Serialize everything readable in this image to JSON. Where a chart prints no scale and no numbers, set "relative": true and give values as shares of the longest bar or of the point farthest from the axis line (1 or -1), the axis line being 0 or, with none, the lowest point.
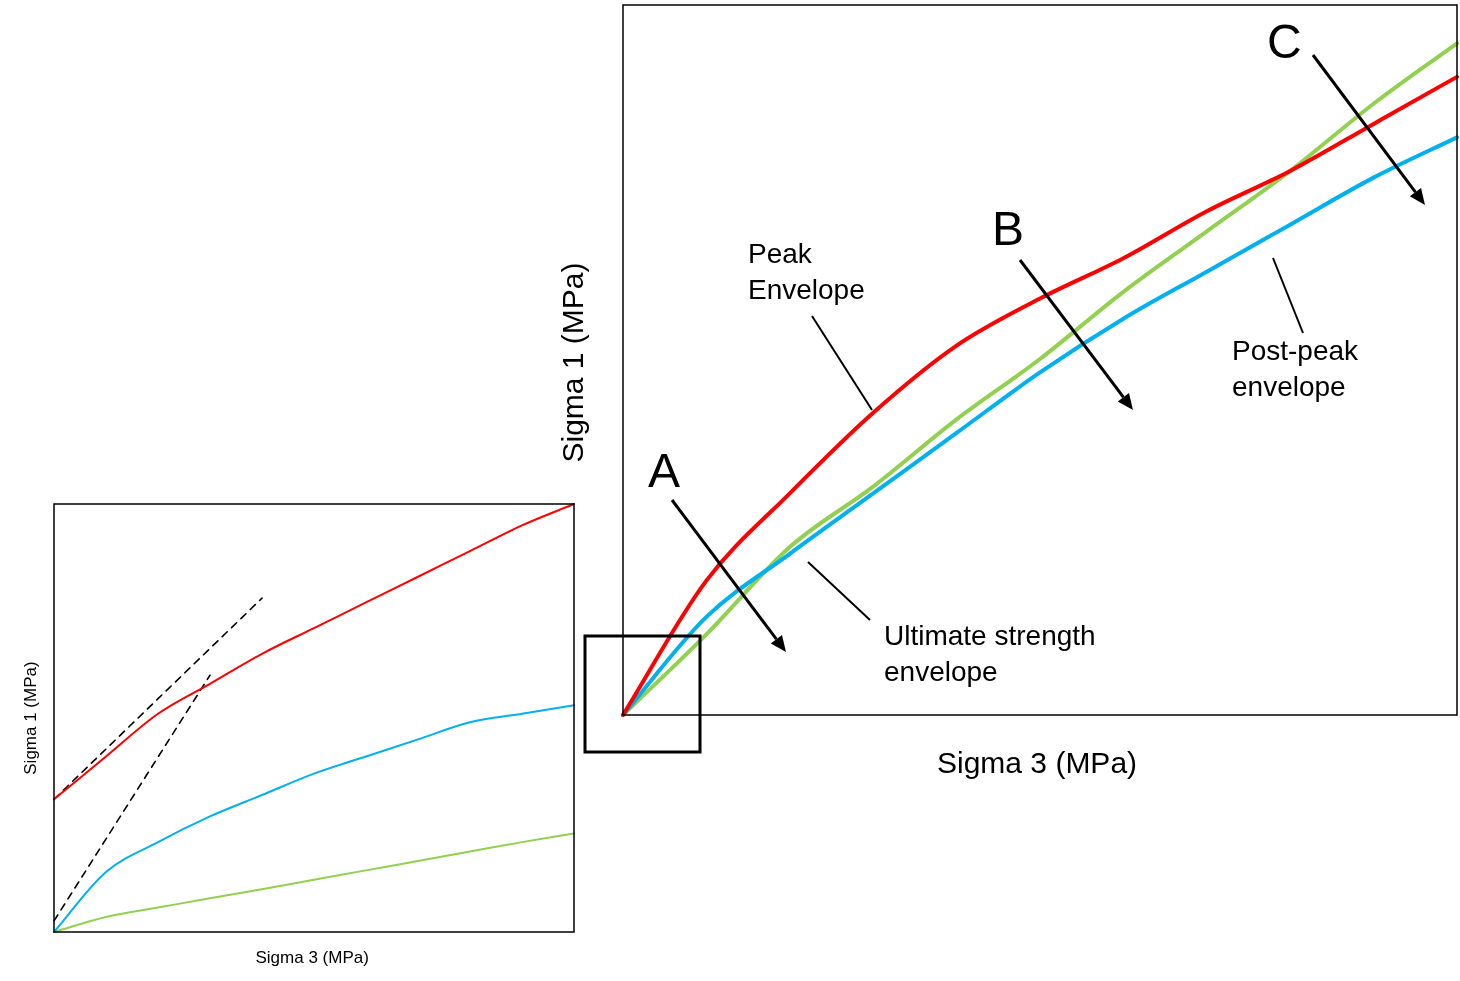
{
  "chart_data": [
    {
      "type": "line",
      "relative": true,
      "tick_labels": false,
      "marker": "none",
      "grid": false,
      "legend": false,
      "xlabel": "Sigma 3 (MPa)",
      "ylabel": "Sigma 1 (MPa)",
      "categories": [
        null,
        null,
        null,
        null,
        null,
        null,
        null,
        null,
        null,
        null,
        null
      ],
      "series": [
        {
          "color": "#ff0000",
          "values": [
            0,
            0.2,
            0.33,
            0.45,
            0.55,
            0.62,
            0.68,
            0.75,
            0.81,
            0.88,
            0.95
          ]
        },
        {
          "color": "#00b0f0",
          "values": [
            0,
            0.146,
            0.24,
            0.33,
            0.42,
            0.51,
            0.59,
            0.66,
            0.73,
            0.8,
            0.86
          ]
        },
        {
          "color": "#92d050",
          "values": [
            0,
            0.12,
            0.25,
            0.34,
            0.44,
            0.53,
            0.63,
            0.72,
            0.81,
            0.91,
            1
          ]
        }
      ],
      "annotations": [
        "A",
        "B",
        "C",
        "Peak Envelope",
        "Post-peak envelope",
        "Ultimate strength envelope"
      ]
    },
    {
      "type": "line",
      "relative": true,
      "tick_labels": false,
      "marker": "none",
      "grid": false,
      "legend": false,
      "xlabel": "Sigma 3 (MPa)",
      "ylabel": "Sigma 1 (MPa)",
      "categories": [
        null,
        null,
        null,
        null,
        null,
        null,
        null,
        null,
        null,
        null,
        null
      ],
      "series": [
        {
          "color": "#ff0000",
          "values": [
            0.31,
            0.41,
            0.51,
            0.58,
            0.65,
            0.71,
            0.77,
            0.83,
            0.89,
            0.95,
            1
          ]
        },
        {
          "color": "#00b0f0",
          "values": [
            0,
            0.14,
            0.21,
            0.27,
            0.32,
            0.37,
            0.41,
            0.45,
            0.49,
            0.51,
            0.53
          ]
        },
        {
          "color": "#92d050",
          "values": [
            0,
            0.035,
            0.057,
            0.079,
            0.1,
            0.122,
            0.144,
            0.166,
            0.188,
            0.21,
            0.23
          ]
        },
        {
          "type": "line",
          "color": "#000000",
          "line_style": "dashed",
          "values": [
            0.31,
            null,
            null,
            null,
            0.78,
            null,
            null,
            null,
            null,
            null,
            null
          ]
        },
        {
          "type": "line",
          "color": "#000000",
          "line_style": "dashed",
          "values": [
            0.026,
            null,
            null,
            0.6,
            null,
            null,
            null,
            null,
            null,
            null,
            null
          ]
        }
      ]
    }
  ]
}
